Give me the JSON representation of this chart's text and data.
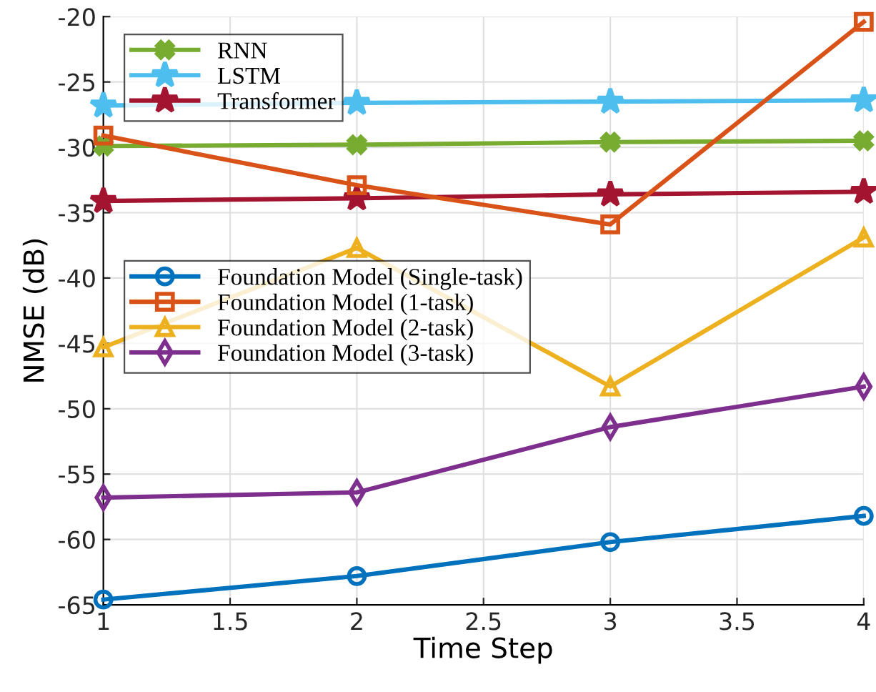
{
  "chart_data": {
    "type": "line",
    "xlabel": "Time Step",
    "ylabel": "NMSE (dB)",
    "x": [
      1,
      2,
      3,
      4
    ],
    "series": [
      {
        "name": "RNN",
        "color": "#77ac30",
        "marker": "cross",
        "values": [
          -29.9,
          -29.8,
          -29.6,
          -29.5
        ]
      },
      {
        "name": "LSTM",
        "color": "#4dbeee",
        "marker": "star",
        "values": [
          -26.8,
          -26.6,
          -26.5,
          -26.4
        ]
      },
      {
        "name": "Transformer",
        "color": "#a2142f",
        "marker": "star",
        "values": [
          -34.1,
          -33.9,
          -33.6,
          -33.4
        ]
      },
      {
        "name": "Foundation Model (Single-task)",
        "color": "#0072bd",
        "marker": "circle",
        "values": [
          -64.6,
          -62.8,
          -60.2,
          -58.2
        ]
      },
      {
        "name": "Foundation Model (1-task)",
        "color": "#d95319",
        "marker": "square",
        "values": [
          -29.1,
          -32.9,
          -35.9,
          -20.4
        ]
      },
      {
        "name": "Foundation Model (2-task)",
        "color": "#edb120",
        "marker": "triangle",
        "values": [
          -45.3,
          -37.7,
          -48.3,
          -36.9
        ]
      },
      {
        "name": "Foundation Model (3-task)",
        "color": "#7e2f8e",
        "marker": "diamond",
        "values": [
          -56.8,
          -56.4,
          -51.4,
          -48.3
        ]
      }
    ],
    "xlim": [
      1,
      4
    ],
    "xticks": [
      1,
      1.5,
      2,
      2.5,
      3,
      3.5,
      4
    ],
    "ylim": [
      -65,
      -20
    ],
    "yticks": [
      -65,
      -60,
      -55,
      -50,
      -45,
      -40,
      -35,
      -30,
      -25,
      -20
    ],
    "grid": true,
    "legend": "top left",
    "line_style": "solid"
  }
}
